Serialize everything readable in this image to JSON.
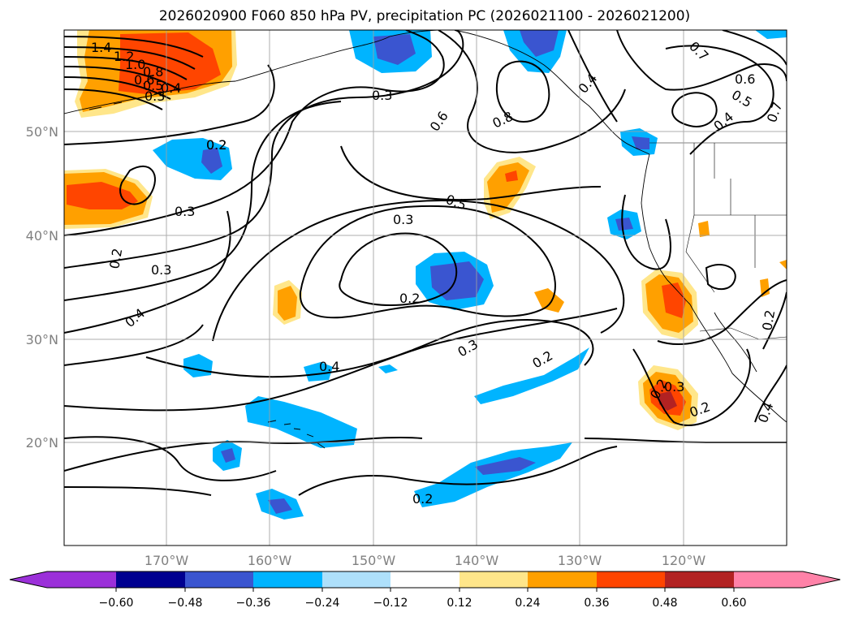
{
  "title": "2026020900 F060 850 hPa PV, precipitation PC (2026021100 - 2026021200)",
  "map": {
    "lat_labels": [
      "50°N",
      "40°N",
      "30°N",
      "20°N"
    ],
    "lon_labels": [
      "170°W",
      "160°W",
      "150°W",
      "140°W",
      "130°W",
      "120°W"
    ],
    "gridlines": true
  },
  "pv_contour_labels": [
    "1.4",
    "1.2",
    "1.0",
    "0.8",
    "0.6",
    "0.5",
    "0.4",
    "0.3",
    "0.2",
    "0.2",
    "0.3",
    "0.2",
    "0.3",
    "0.4",
    "0.3",
    "0.2",
    "0.5",
    "0.6",
    "0.8",
    "0.4",
    "0.3",
    "0.2",
    "0.4",
    "0.3",
    "0.2",
    "0.2",
    "0.3",
    "0.2",
    "0.4",
    "0.2",
    "0.7",
    "0.6",
    "0.5",
    "0.4",
    "0.7",
    "0.4"
  ],
  "colorbar": {
    "tick_labels": [
      "−0.60",
      "−0.48",
      "−0.36",
      "−0.24",
      "−0.12",
      "0.12",
      "0.24",
      "0.36",
      "0.48",
      "0.60"
    ],
    "colors": {
      "extend_min": "#9b30d9",
      "bin_1": "#000090",
      "bin_2": "#3a55d0",
      "bin_3": "#00b4ff",
      "bin_4": "#aee0fb",
      "bin_5": "#ffffff",
      "bin_6": "#ffe68a",
      "bin_7": "#ffa000",
      "bin_8": "#ff4500",
      "bin_9": "#b22222",
      "extend_max": "#ff82a8"
    }
  }
}
